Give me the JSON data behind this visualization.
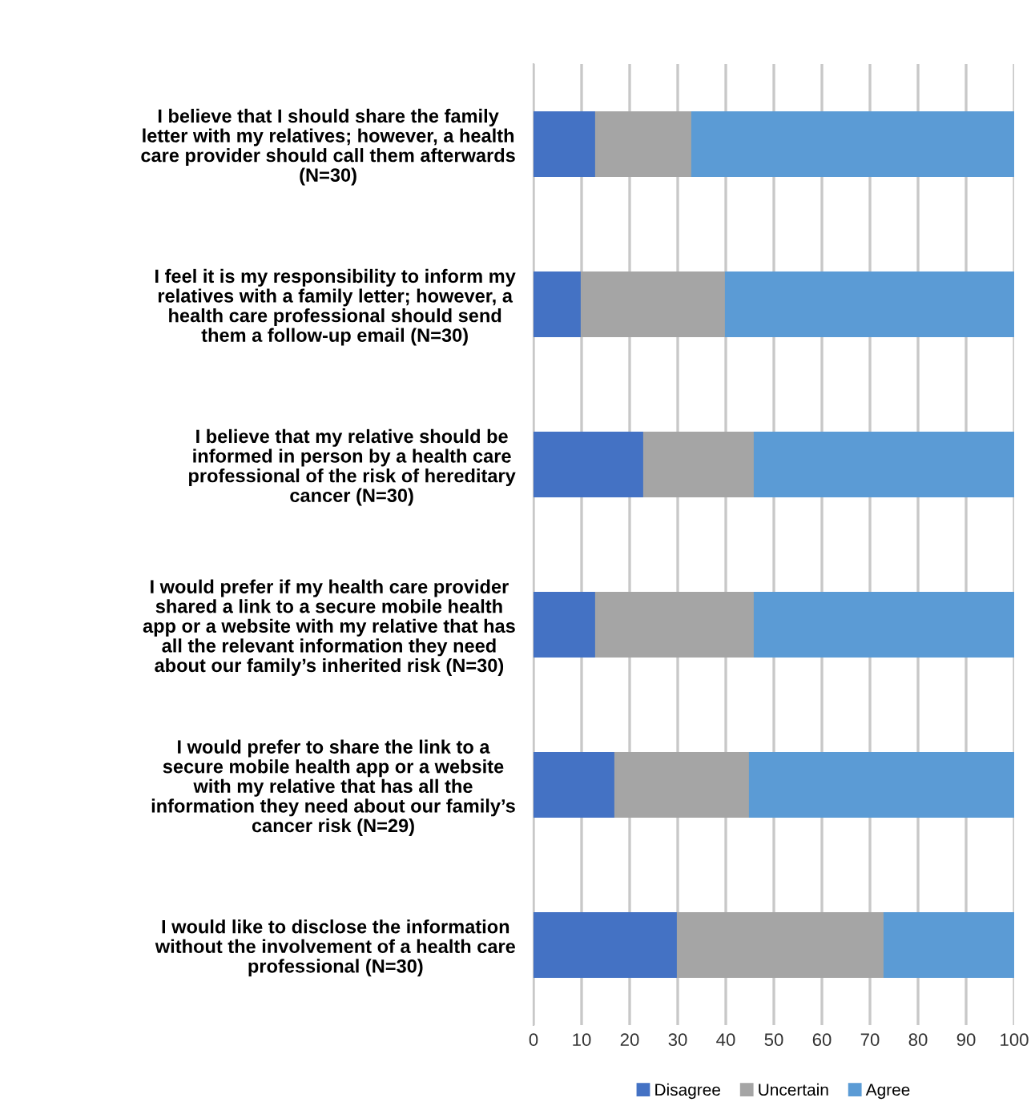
{
  "chart_data": {
    "type": "bar",
    "orientation": "horizontal",
    "stacked": true,
    "categories": [
      "I believe that I should share the family\nletter with my relatives; however, a health\ncare provider should call them afterwards\n(N=30)",
      "I feel it is my responsibility to inform my\nrelatives with a family letter; however, a\nhealth care professional should send\nthem a follow-up email (N=30)",
      "I believe that my relative should be\ninformed in person by a health care\nprofessional of the risk of hereditary\ncancer (N=30)",
      "I would prefer if my health care provider\nshared a link to a secure mobile health\napp or a website with my relative that has\nall the relevant information they need\nabout our family’s inherited risk (N=30)",
      "I would prefer to share the link to a\nsecure mobile health app or a website\nwith my relative that has all the\ninformation they need about our family’s\ncancer risk (N=29)",
      "I would like to disclose the information\nwithout the involvement of a health care\nprofessional (N=30)"
    ],
    "series": [
      {
        "name": "Disagree",
        "color": "#4472c4",
        "values": [
          13,
          10,
          23,
          13,
          17,
          30
        ]
      },
      {
        "name": "Uncertain",
        "color": "#a5a5a5",
        "values": [
          20,
          30,
          23,
          33,
          28,
          43
        ]
      },
      {
        "name": "Agree",
        "color": "#5b9bd5",
        "values": [
          67,
          60,
          54,
          54,
          55,
          27
        ]
      }
    ],
    "xlim": [
      0,
      100
    ],
    "xticks": [
      0,
      10,
      20,
      30,
      40,
      50,
      60,
      70,
      80,
      90,
      100
    ],
    "grid": "x",
    "legend": "bottom"
  }
}
